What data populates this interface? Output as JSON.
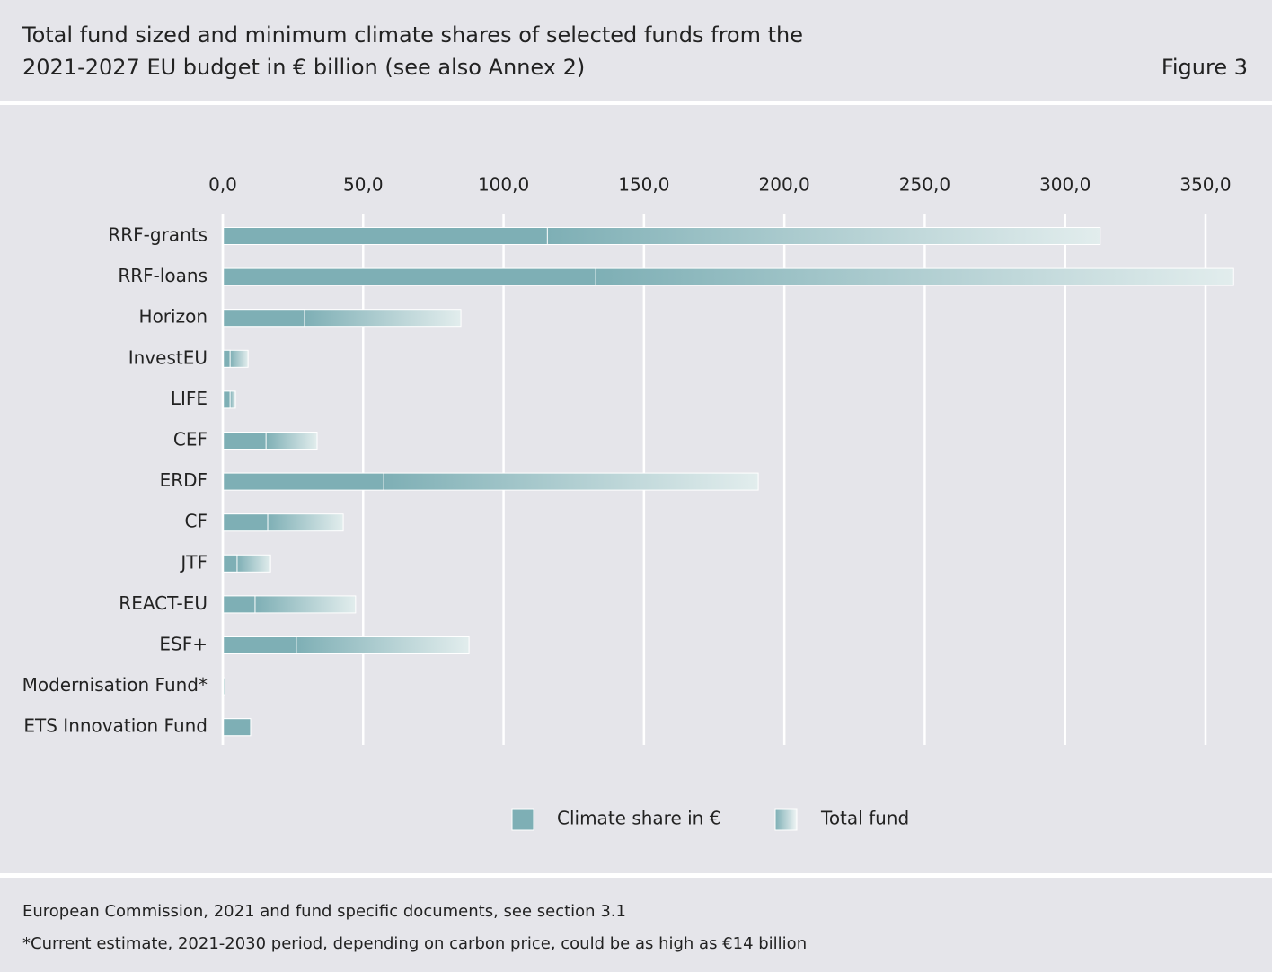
{
  "figure_label": "Figure 3",
  "footer": {
    "source": "European Commission, 2021 and fund specific documents, see section 3.1",
    "note": "*Current estimate, 2021-2030 period, depending on carbon price, could be as high as €14 billion"
  },
  "chart_data": {
    "type": "bar",
    "orientation": "horizontal",
    "title": [
      "Total fund sized and minimum climate shares of selected funds from the",
      "2021-2027 EU budget in € billion (see also Annex 2)"
    ],
    "categories": [
      "RRF-grants",
      "RRF-loans",
      "Horizon",
      "InvestEU",
      "LIFE",
      "CEF",
      "ERDF",
      "CF",
      "JTF",
      "REACT-EU",
      "ESF+",
      "Modernisation Fund*",
      "ETS Innovation Fund"
    ],
    "series": [
      {
        "name": "Climate share in €",
        "color": "#7eafb5",
        "values": [
          115.6,
          132.8,
          29.1,
          2.6,
          2.6,
          15.4,
          57.3,
          16.0,
          5.1,
          11.5,
          26.2,
          0,
          9.9
        ]
      },
      {
        "name": "Total fund",
        "color": "#e2eded",
        "values": [
          312.5,
          360,
          84.8,
          9.0,
          4.5,
          33.6,
          190.7,
          42.9,
          17.0,
          47.3,
          87.7,
          0.8,
          9.9
        ]
      }
    ],
    "xlim": [
      0,
      350
    ],
    "xticks": [
      {
        "value": 0,
        "label": "0,0"
      },
      {
        "value": 50,
        "label": "50,0"
      },
      {
        "value": 100,
        "label": "100,0"
      },
      {
        "value": 150,
        "label": "150,0"
      },
      {
        "value": 200,
        "label": "200,0"
      },
      {
        "value": 250,
        "label": "250,0"
      },
      {
        "value": 300,
        "label": "300,0"
      },
      {
        "value": 350,
        "label": "350,0"
      }
    ],
    "grid": true,
    "legend": "bottom"
  }
}
